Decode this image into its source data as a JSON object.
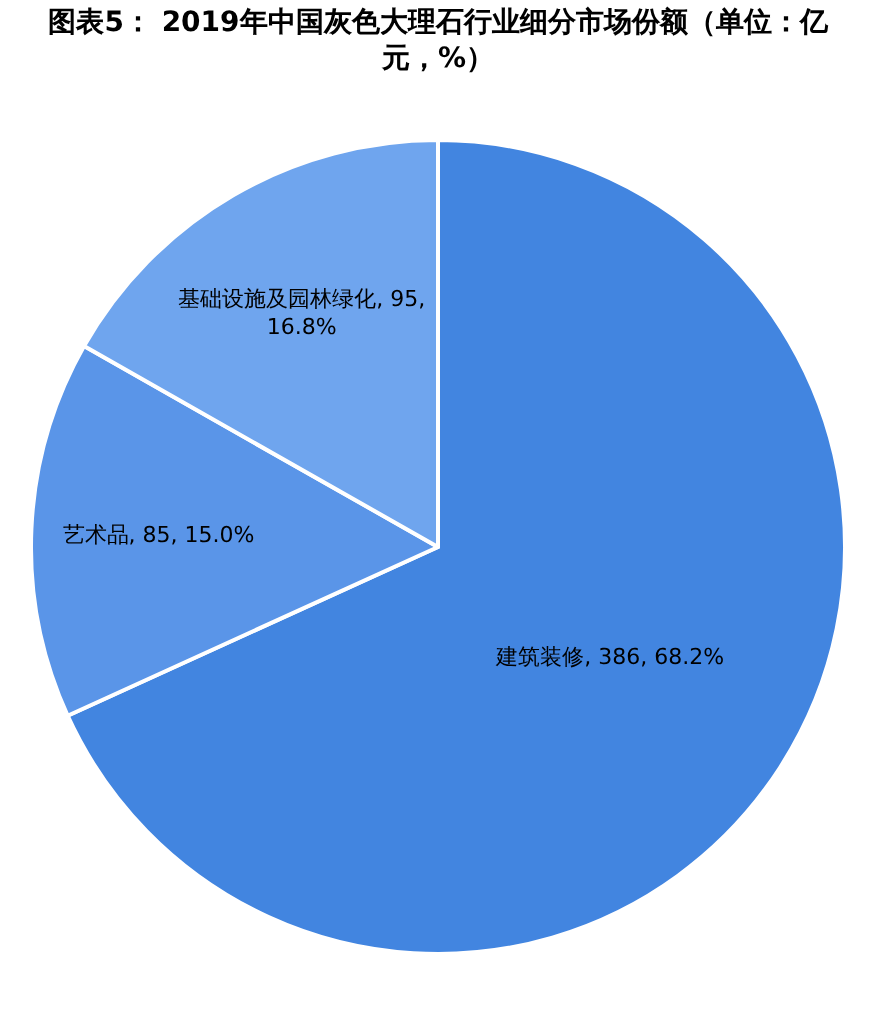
{
  "chart_data": {
    "type": "pie",
    "title": "图表5： 2019年中国灰色大理石行业细分市场份额（单位：亿元，%）",
    "categories": [
      "建筑装修",
      "艺术品",
      "基础设施及园林绿化"
    ],
    "values": [
      386,
      85,
      95
    ],
    "value_labels": [
      "386, 68.2%",
      "85, 15.0%",
      "95, 16.8%"
    ],
    "colors": [
      "#4285e0",
      "#5a95e8",
      "#6fa5ee"
    ],
    "legend": false
  }
}
